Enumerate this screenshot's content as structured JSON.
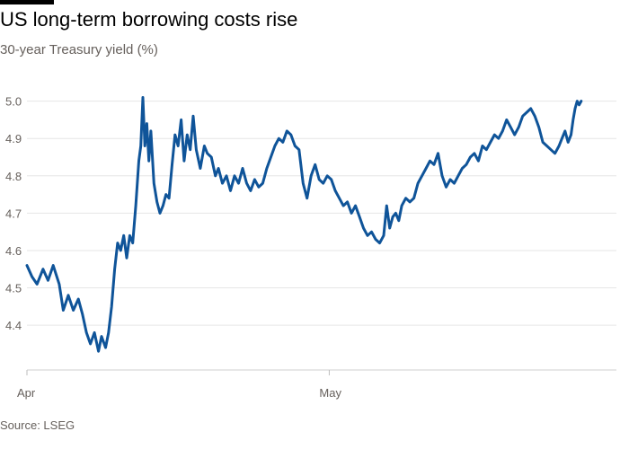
{
  "chart_data": {
    "type": "line",
    "title": "US long-term borrowing costs rise",
    "subtitle": "30-year Treasury yield (%)",
    "source": "Source: LSEG",
    "ylim": [
      4.28,
      5.04
    ],
    "y_ticks": [
      4.4,
      4.5,
      4.6,
      4.7,
      4.8,
      4.9,
      5.0
    ],
    "y_tick_labels": [
      "4.4",
      "4.5",
      "4.6",
      "4.7",
      "4.8",
      "4.9",
      "5.0"
    ],
    "x_tick_labels": [
      "Apr",
      "May"
    ],
    "x_ticks": [
      0,
      30
    ],
    "xlim": [
      0,
      58.5
    ],
    "grid": true,
    "colors": {
      "series": "#0f5499",
      "grid": "#e6e6e6",
      "text": "#66605c"
    },
    "series": [
      {
        "values": [
          [
            0.0,
            4.56
          ],
          [
            0.5,
            4.53
          ],
          [
            1.0,
            4.51
          ],
          [
            1.6,
            4.55
          ],
          [
            2.1,
            4.52
          ],
          [
            2.6,
            4.56
          ],
          [
            3.2,
            4.51
          ],
          [
            3.6,
            4.44
          ],
          [
            4.1,
            4.48
          ],
          [
            4.6,
            4.44
          ],
          [
            5.1,
            4.47
          ],
          [
            5.5,
            4.43
          ],
          [
            5.9,
            4.38
          ],
          [
            6.3,
            4.35
          ],
          [
            6.7,
            4.38
          ],
          [
            7.1,
            4.33
          ],
          [
            7.4,
            4.37
          ],
          [
            7.8,
            4.34
          ],
          [
            8.1,
            4.38
          ],
          [
            8.4,
            4.45
          ],
          [
            8.7,
            4.55
          ],
          [
            9.0,
            4.62
          ],
          [
            9.3,
            4.6
          ],
          [
            9.6,
            4.64
          ],
          [
            9.9,
            4.58
          ],
          [
            10.2,
            4.64
          ],
          [
            10.5,
            4.62
          ],
          [
            10.8,
            4.72
          ],
          [
            11.1,
            4.84
          ],
          [
            11.3,
            4.88
          ],
          [
            11.5,
            5.01
          ],
          [
            11.7,
            4.88
          ],
          [
            11.9,
            4.94
          ],
          [
            12.1,
            4.84
          ],
          [
            12.3,
            4.92
          ],
          [
            12.6,
            4.78
          ],
          [
            12.9,
            4.73
          ],
          [
            13.2,
            4.7
          ],
          [
            13.5,
            4.72
          ],
          [
            13.8,
            4.75
          ],
          [
            14.1,
            4.74
          ],
          [
            14.4,
            4.83
          ],
          [
            14.7,
            4.91
          ],
          [
            15.0,
            4.88
          ],
          [
            15.3,
            4.95
          ],
          [
            15.6,
            4.84
          ],
          [
            15.9,
            4.91
          ],
          [
            16.2,
            4.87
          ],
          [
            16.5,
            4.96
          ],
          [
            16.8,
            4.87
          ],
          [
            17.2,
            4.82
          ],
          [
            17.6,
            4.88
          ],
          [
            17.9,
            4.86
          ],
          [
            18.3,
            4.85
          ],
          [
            18.7,
            4.8
          ],
          [
            19.0,
            4.82
          ],
          [
            19.4,
            4.78
          ],
          [
            19.8,
            4.8
          ],
          [
            20.2,
            4.76
          ],
          [
            20.6,
            4.8
          ],
          [
            21.0,
            4.78
          ],
          [
            21.4,
            4.82
          ],
          [
            21.8,
            4.78
          ],
          [
            22.2,
            4.76
          ],
          [
            22.6,
            4.79
          ],
          [
            23.0,
            4.77
          ],
          [
            23.4,
            4.78
          ],
          [
            23.8,
            4.82
          ],
          [
            24.2,
            4.85
          ],
          [
            24.6,
            4.88
          ],
          [
            25.0,
            4.9
          ],
          [
            25.4,
            4.89
          ],
          [
            25.8,
            4.92
          ],
          [
            26.2,
            4.91
          ],
          [
            26.6,
            4.88
          ],
          [
            27.0,
            4.87
          ],
          [
            27.4,
            4.78
          ],
          [
            27.8,
            4.74
          ],
          [
            28.2,
            4.8
          ],
          [
            28.6,
            4.83
          ],
          [
            29.0,
            4.79
          ],
          [
            29.4,
            4.78
          ],
          [
            29.8,
            4.8
          ],
          [
            30.2,
            4.79
          ],
          [
            30.6,
            4.76
          ],
          [
            31.0,
            4.74
          ],
          [
            31.4,
            4.72
          ],
          [
            31.8,
            4.73
          ],
          [
            32.2,
            4.7
          ],
          [
            32.6,
            4.72
          ],
          [
            33.0,
            4.69
          ],
          [
            33.4,
            4.66
          ],
          [
            33.8,
            4.64
          ],
          [
            34.2,
            4.65
          ],
          [
            34.6,
            4.63
          ],
          [
            35.0,
            4.62
          ],
          [
            35.4,
            4.64
          ],
          [
            35.7,
            4.72
          ],
          [
            36.0,
            4.66
          ],
          [
            36.3,
            4.69
          ],
          [
            36.6,
            4.7
          ],
          [
            36.9,
            4.68
          ],
          [
            37.2,
            4.72
          ],
          [
            37.6,
            4.74
          ],
          [
            38.0,
            4.73
          ],
          [
            38.4,
            4.74
          ],
          [
            38.8,
            4.78
          ],
          [
            39.2,
            4.8
          ],
          [
            39.6,
            4.82
          ],
          [
            40.0,
            4.84
          ],
          [
            40.4,
            4.83
          ],
          [
            40.8,
            4.86
          ],
          [
            41.2,
            4.8
          ],
          [
            41.6,
            4.77
          ],
          [
            42.0,
            4.79
          ],
          [
            42.4,
            4.78
          ],
          [
            42.8,
            4.8
          ],
          [
            43.2,
            4.82
          ],
          [
            43.6,
            4.83
          ],
          [
            44.0,
            4.85
          ],
          [
            44.4,
            4.86
          ],
          [
            44.8,
            4.84
          ],
          [
            45.2,
            4.88
          ],
          [
            45.6,
            4.87
          ],
          [
            46.0,
            4.89
          ],
          [
            46.4,
            4.91
          ],
          [
            46.8,
            4.9
          ],
          [
            47.2,
            4.92
          ],
          [
            47.6,
            4.95
          ],
          [
            48.0,
            4.93
          ],
          [
            48.4,
            4.91
          ],
          [
            48.8,
            4.93
          ],
          [
            49.2,
            4.96
          ],
          [
            49.6,
            4.97
          ],
          [
            50.0,
            4.98
          ],
          [
            50.4,
            4.96
          ],
          [
            50.8,
            4.93
          ],
          [
            51.2,
            4.89
          ],
          [
            51.6,
            4.88
          ],
          [
            52.0,
            4.87
          ],
          [
            52.4,
            4.86
          ],
          [
            52.8,
            4.88
          ],
          [
            53.1,
            4.9
          ],
          [
            53.4,
            4.92
          ],
          [
            53.7,
            4.89
          ],
          [
            54.0,
            4.91
          ],
          [
            54.2,
            4.95
          ],
          [
            54.4,
            4.98
          ],
          [
            54.6,
            5.0
          ],
          [
            54.8,
            4.99
          ],
          [
            55.0,
            5.0
          ]
        ]
      }
    ]
  }
}
